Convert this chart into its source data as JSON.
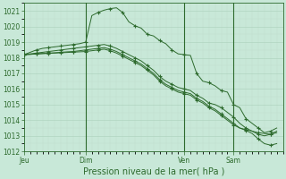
{
  "bg_color": "#c8e8d8",
  "grid_major_color": "#b0d4c0",
  "grid_minor_color": "#c0dece",
  "line_color": "#2d6a2d",
  "title": "Pression niveau de la mer( hPa )",
  "ylim": [
    1012,
    1021.5
  ],
  "yticks": [
    1012,
    1013,
    1014,
    1015,
    1016,
    1017,
    1018,
    1019,
    1020,
    1021
  ],
  "xtick_labels": [
    "Jeu",
    "Dim",
    "Ven",
    "Sam"
  ],
  "xtick_positions": [
    0,
    10,
    26,
    34
  ],
  "vlines": [
    10,
    26,
    34
  ],
  "xlim": [
    0,
    42
  ],
  "series": [
    {
      "x": [
        0,
        1,
        2,
        3,
        4,
        5,
        6,
        7,
        8,
        9,
        10,
        11,
        12,
        13,
        14,
        15,
        16,
        17,
        18,
        19,
        20,
        21,
        22,
        23,
        24,
        25,
        26,
        27,
        28,
        29,
        30,
        31,
        32,
        33,
        34,
        35,
        36,
        37,
        38,
        39,
        40,
        41
      ],
      "y": [
        1018.2,
        1018.35,
        1018.5,
        1018.6,
        1018.65,
        1018.7,
        1018.75,
        1018.8,
        1018.85,
        1018.9,
        1019.0,
        1020.7,
        1020.9,
        1021.05,
        1021.15,
        1021.2,
        1020.9,
        1020.3,
        1020.05,
        1019.9,
        1019.5,
        1019.4,
        1019.1,
        1018.9,
        1018.5,
        1018.25,
        1018.2,
        1018.15,
        1017.0,
        1016.5,
        1016.4,
        1016.2,
        1015.9,
        1015.8,
        1015.0,
        1014.8,
        1014.1,
        1013.8,
        1013.5,
        1013.2,
        1013.3,
        1013.5
      ],
      "markers": [
        0,
        2,
        4,
        6,
        8,
        10,
        12,
        14,
        16,
        18,
        20,
        22,
        24,
        26,
        28,
        30,
        32,
        34,
        36,
        38,
        40
      ]
    },
    {
      "x": [
        0,
        1,
        2,
        3,
        4,
        5,
        6,
        7,
        8,
        9,
        10,
        11,
        12,
        13,
        14,
        15,
        16,
        17,
        18,
        19,
        20,
        21,
        22,
        23,
        24,
        25,
        26,
        27,
        28,
        29,
        30,
        31,
        32,
        33,
        34,
        35,
        36,
        37,
        38,
        39,
        40,
        41
      ],
      "y": [
        1018.2,
        1018.25,
        1018.3,
        1018.35,
        1018.4,
        1018.45,
        1018.5,
        1018.55,
        1018.6,
        1018.65,
        1018.7,
        1018.75,
        1018.8,
        1018.85,
        1018.75,
        1018.6,
        1018.4,
        1018.2,
        1018.0,
        1017.8,
        1017.5,
        1017.2,
        1016.8,
        1016.5,
        1016.3,
        1016.1,
        1016.0,
        1015.9,
        1015.6,
        1015.4,
        1015.1,
        1015.0,
        1014.8,
        1014.5,
        1014.2,
        1013.8,
        1013.5,
        1013.3,
        1013.2,
        1013.15,
        1013.1,
        1013.2
      ],
      "markers": [
        0,
        2,
        4,
        6,
        8,
        10,
        12,
        14,
        16,
        18,
        20,
        22,
        24,
        26,
        28,
        30,
        32,
        34,
        36,
        38,
        40
      ]
    },
    {
      "x": [
        0,
        1,
        2,
        3,
        4,
        5,
        6,
        7,
        8,
        9,
        10,
        11,
        12,
        13,
        14,
        15,
        16,
        17,
        18,
        19,
        20,
        21,
        22,
        23,
        24,
        25,
        26,
        27,
        28,
        29,
        30,
        31,
        32,
        33,
        34,
        35,
        36,
        37,
        38,
        39,
        40,
        41
      ],
      "y": [
        1018.2,
        1018.22,
        1018.25,
        1018.28,
        1018.3,
        1018.32,
        1018.35,
        1018.38,
        1018.4,
        1018.45,
        1018.5,
        1018.55,
        1018.6,
        1018.65,
        1018.55,
        1018.4,
        1018.2,
        1018.0,
        1017.8,
        1017.6,
        1017.3,
        1017.0,
        1016.6,
        1016.3,
        1016.1,
        1015.9,
        1015.8,
        1015.7,
        1015.4,
        1015.2,
        1014.9,
        1014.7,
        1014.4,
        1014.1,
        1013.8,
        1013.5,
        1013.4,
        1013.3,
        1013.1,
        1013.0,
        1013.1,
        1013.3
      ],
      "markers": [
        0,
        2,
        4,
        6,
        8,
        10,
        12,
        14,
        16,
        18,
        20,
        22,
        24,
        26,
        28,
        30,
        32,
        34,
        36,
        38,
        40
      ]
    },
    {
      "x": [
        0,
        1,
        2,
        3,
        4,
        5,
        6,
        7,
        8,
        9,
        10,
        11,
        12,
        13,
        14,
        15,
        16,
        17,
        18,
        19,
        20,
        21,
        22,
        23,
        24,
        25,
        26,
        27,
        28,
        29,
        30,
        31,
        32,
        33,
        34,
        35,
        36,
        37,
        38,
        39,
        40,
        41
      ],
      "y": [
        1018.2,
        1018.22,
        1018.24,
        1018.26,
        1018.28,
        1018.3,
        1018.32,
        1018.34,
        1018.36,
        1018.38,
        1018.4,
        1018.45,
        1018.5,
        1018.55,
        1018.45,
        1018.3,
        1018.1,
        1017.9,
        1017.7,
        1017.5,
        1017.2,
        1016.9,
        1016.5,
        1016.2,
        1016.0,
        1015.8,
        1015.7,
        1015.6,
        1015.3,
        1015.1,
        1014.8,
        1014.6,
        1014.3,
        1014.0,
        1013.7,
        1013.5,
        1013.35,
        1013.15,
        1012.8,
        1012.5,
        1012.4,
        1012.5
      ],
      "markers": [
        0,
        2,
        4,
        6,
        8,
        10,
        12,
        14,
        16,
        18,
        20,
        22,
        24,
        26,
        28,
        30,
        32,
        34,
        36,
        38,
        40
      ]
    }
  ],
  "figsize": [
    3.2,
    2.0
  ],
  "dpi": 100,
  "title_fontsize": 7,
  "tick_fontsize": 5.5,
  "xlabel_pad": 2
}
